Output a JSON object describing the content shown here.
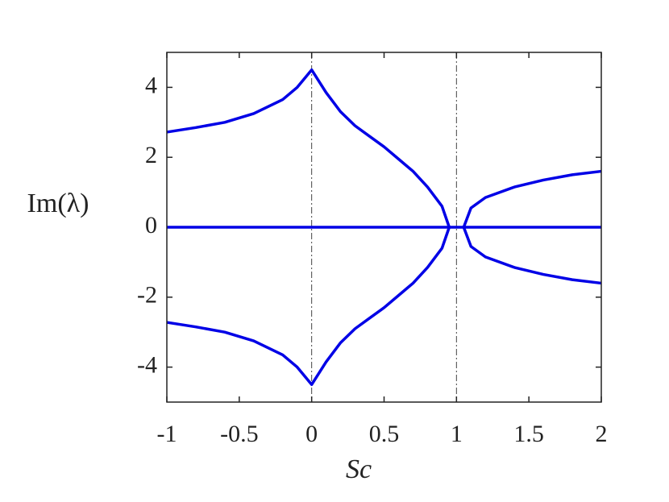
{
  "chart_data": {
    "type": "line",
    "xlabel": "Sc",
    "ylabel": "Im(λ)",
    "x": [
      -1,
      -0.8,
      -0.6,
      -0.4,
      -0.2,
      -0.1,
      0,
      0.1,
      0.2,
      0.3,
      0.4,
      0.5,
      0.6,
      0.7,
      0.8,
      0.9,
      0.95,
      1.05,
      1.1,
      1.2,
      1.4,
      1.6,
      1.8,
      2
    ],
    "series": [
      {
        "color": "#0000e6",
        "values": [
          2.72,
          2.85,
          3.0,
          3.25,
          3.65,
          4.0,
          4.5,
          3.85,
          3.3,
          2.9,
          2.6,
          2.3,
          1.95,
          1.6,
          1.15,
          0.6,
          0,
          null,
          null,
          null,
          null,
          null,
          null,
          null
        ]
      },
      {
        "color": "#0000e6",
        "values": [
          -2.72,
          -2.85,
          -3.0,
          -3.25,
          -3.65,
          -4.0,
          -4.5,
          -3.85,
          -3.3,
          -2.9,
          -2.6,
          -2.3,
          -1.95,
          -1.6,
          -1.15,
          -0.6,
          0,
          null,
          null,
          null,
          null,
          null,
          null,
          null
        ]
      },
      {
        "color": "#0000e6",
        "values": [
          null,
          null,
          null,
          null,
          null,
          null,
          null,
          null,
          null,
          null,
          null,
          null,
          null,
          null,
          null,
          null,
          null,
          0,
          0.55,
          0.85,
          1.15,
          1.35,
          1.5,
          1.6
        ]
      },
      {
        "color": "#0000e6",
        "values": [
          null,
          null,
          null,
          null,
          null,
          null,
          null,
          null,
          null,
          null,
          null,
          null,
          null,
          null,
          null,
          null,
          null,
          0,
          -0.55,
          -0.85,
          -1.15,
          -1.35,
          -1.5,
          -1.6
        ]
      },
      {
        "color": "#0000e6",
        "values": [
          0,
          0,
          0,
          0,
          0,
          0,
          0,
          0,
          0,
          0,
          0,
          0,
          0,
          0,
          0,
          0,
          0,
          0,
          0,
          0,
          0,
          0,
          0,
          0
        ]
      }
    ],
    "vlines": [
      0,
      1
    ],
    "xlim": [
      -1,
      2
    ],
    "xticks": [
      -1,
      -0.5,
      0,
      0.5,
      1,
      1.5,
      2
    ],
    "ylim": [
      -5,
      5
    ],
    "yticks": [
      -4,
      -2,
      0,
      2,
      4
    ]
  }
}
